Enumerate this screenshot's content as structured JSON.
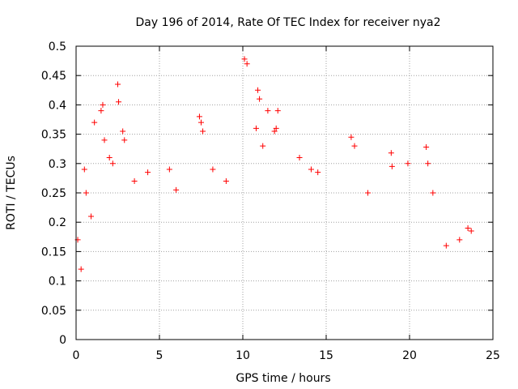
{
  "chart_data": {
    "type": "scatter",
    "title": "Day 196 of 2014, Rate Of TEC Index for receiver nya2",
    "xlabel": "GPS time / hours",
    "ylabel": "ROTI / TECUs",
    "xlim": [
      0,
      25
    ],
    "ylim": [
      0,
      0.5
    ],
    "xticks": [
      0,
      5,
      10,
      15,
      20,
      25
    ],
    "xtick_labels": [
      "0",
      "5",
      "10",
      "15",
      "20",
      "25"
    ],
    "yticks": [
      0,
      0.05,
      0.1,
      0.15,
      0.2,
      0.25,
      0.3,
      0.35,
      0.4,
      0.45,
      0.5
    ],
    "ytick_labels": [
      "0",
      "0.05",
      "0.1",
      "0.15",
      "0.2",
      "0.25",
      "0.3",
      "0.35",
      "0.4",
      "0.45",
      "0.5"
    ],
    "grid": true,
    "marker": "+",
    "color": "#ff0000",
    "series": [
      {
        "name": "ROTI",
        "points": [
          [
            0.1,
            0.17
          ],
          [
            0.3,
            0.12
          ],
          [
            0.5,
            0.29
          ],
          [
            0.6,
            0.25
          ],
          [
            0.9,
            0.21
          ],
          [
            1.1,
            0.37
          ],
          [
            1.5,
            0.39
          ],
          [
            1.6,
            0.4
          ],
          [
            1.7,
            0.34
          ],
          [
            2.0,
            0.31
          ],
          [
            2.2,
            0.3
          ],
          [
            2.5,
            0.435
          ],
          [
            2.55,
            0.405
          ],
          [
            2.8,
            0.355
          ],
          [
            2.9,
            0.34
          ],
          [
            3.5,
            0.27
          ],
          [
            4.3,
            0.285
          ],
          [
            5.6,
            0.29
          ],
          [
            6.0,
            0.255
          ],
          [
            7.4,
            0.38
          ],
          [
            7.5,
            0.37
          ],
          [
            7.6,
            0.355
          ],
          [
            8.2,
            0.29
          ],
          [
            9.0,
            0.27
          ],
          [
            10.1,
            0.478
          ],
          [
            10.25,
            0.47
          ],
          [
            10.9,
            0.425
          ],
          [
            11.0,
            0.41
          ],
          [
            11.5,
            0.39
          ],
          [
            12.1,
            0.39
          ],
          [
            12.0,
            0.36
          ],
          [
            11.9,
            0.355
          ],
          [
            10.8,
            0.36
          ],
          [
            11.2,
            0.33
          ],
          [
            13.4,
            0.31
          ],
          [
            14.1,
            0.29
          ],
          [
            14.5,
            0.285
          ],
          [
            16.5,
            0.345
          ],
          [
            16.7,
            0.33
          ],
          [
            17.5,
            0.25
          ],
          [
            18.9,
            0.318
          ],
          [
            18.95,
            0.295
          ],
          [
            19.9,
            0.3
          ],
          [
            21.0,
            0.328
          ],
          [
            21.1,
            0.3
          ],
          [
            21.4,
            0.25
          ],
          [
            22.2,
            0.16
          ],
          [
            23.0,
            0.17
          ],
          [
            23.5,
            0.19
          ],
          [
            23.7,
            0.185
          ]
        ]
      }
    ]
  }
}
